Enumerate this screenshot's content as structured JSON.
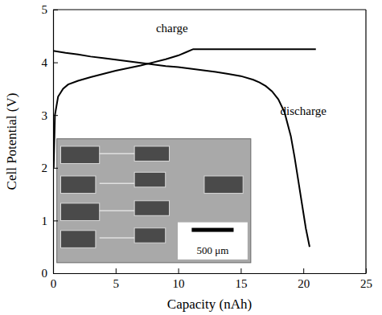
{
  "chart_data": {
    "type": "line",
    "x_label": "Capacity (nAh)",
    "y_label": "Cell Potential (V)",
    "scale_bar_label": "500 μm",
    "xlim": [
      0,
      25
    ],
    "ylim": [
      0,
      5
    ],
    "xticks": [
      0,
      5,
      10,
      15,
      20,
      25
    ],
    "yticks": [
      0,
      1,
      2,
      3,
      4,
      5
    ],
    "grid": false,
    "series": [
      {
        "name": "charge",
        "color": "#000000",
        "x": [
          0.05,
          0.15,
          0.4,
          0.8,
          1.2,
          2,
          3,
          4,
          5,
          6,
          7,
          8,
          9,
          10,
          10.7,
          11.2,
          13,
          15,
          17,
          19,
          21
        ],
        "values": [
          2.0,
          3.0,
          3.35,
          3.5,
          3.58,
          3.65,
          3.72,
          3.78,
          3.84,
          3.89,
          3.94,
          4.0,
          4.06,
          4.13,
          4.2,
          4.25,
          4.25,
          4.25,
          4.25,
          4.25,
          4.25
        ]
      },
      {
        "name": "discharge",
        "color": "#000000",
        "x": [
          0,
          1,
          2,
          3,
          4,
          5,
          6,
          7,
          8,
          9,
          10,
          11,
          12,
          13,
          14,
          15,
          16,
          16.5,
          17,
          17.5,
          18,
          18.5,
          19,
          19.3,
          19.6,
          19.9,
          20.2,
          20.5
        ],
        "values": [
          4.22,
          4.18,
          4.15,
          4.11,
          4.08,
          4.05,
          4.02,
          3.99,
          3.96,
          3.93,
          3.91,
          3.88,
          3.85,
          3.82,
          3.78,
          3.74,
          3.67,
          3.62,
          3.55,
          3.45,
          3.3,
          3.05,
          2.6,
          2.2,
          1.75,
          1.3,
          0.85,
          0.5
        ]
      }
    ]
  }
}
